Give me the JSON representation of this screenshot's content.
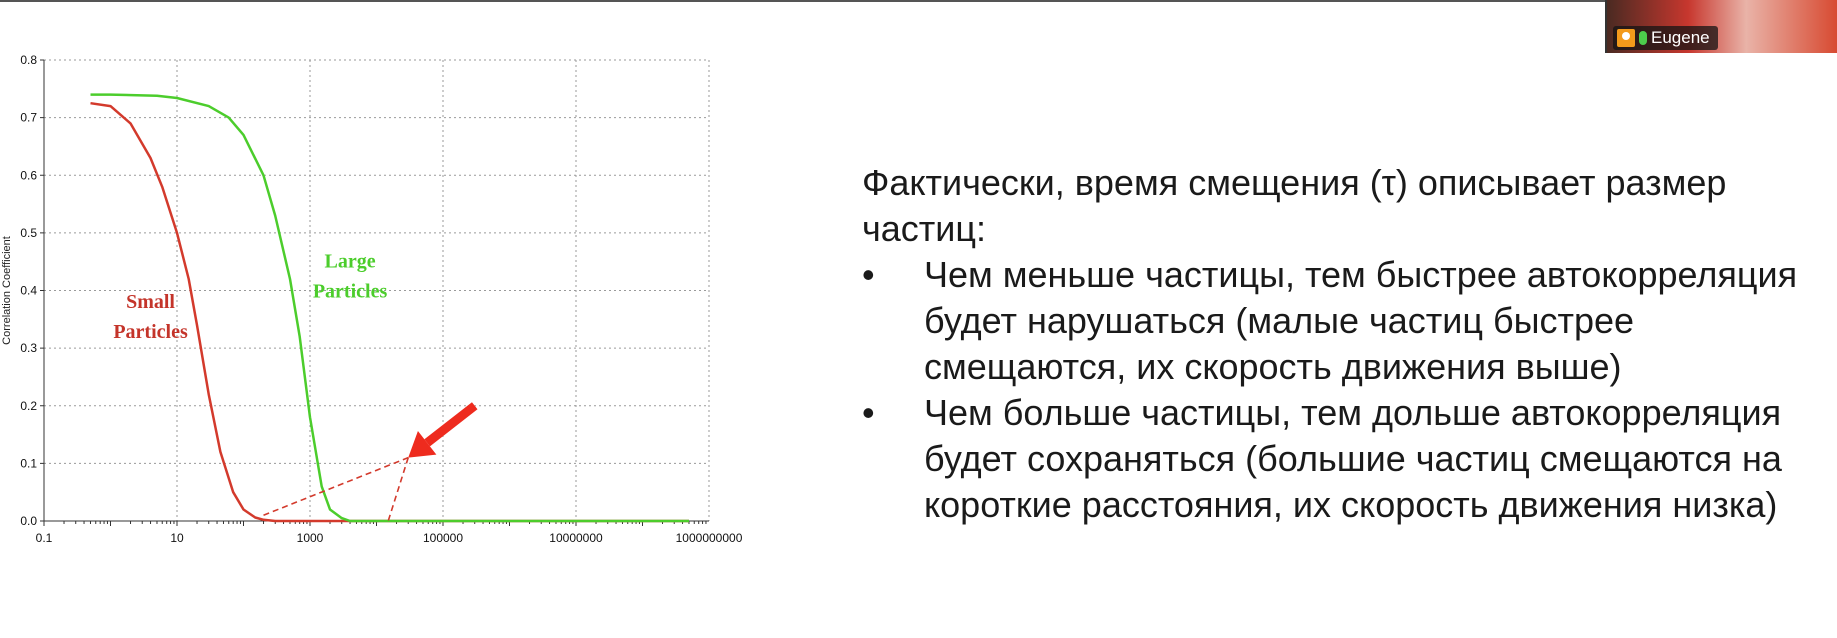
{
  "chart_data": {
    "type": "line",
    "title": "",
    "xlabel": "",
    "ylabel": "Correlation Coefficient",
    "x_scale": "log",
    "xlim": [
      0.1,
      1000000000
    ],
    "ylim": [
      0,
      0.8
    ],
    "grid": true,
    "x_ticks": [
      0.1,
      10,
      1000,
      100000,
      10000000,
      1000000000
    ],
    "x_tick_labels": [
      "0.1",
      "10",
      "1000",
      "100000",
      "10000000",
      "1000000000"
    ],
    "y_ticks": [
      0,
      0.1,
      0.2,
      0.3,
      0.4,
      0.5,
      0.6,
      0.7,
      0.8
    ],
    "y_tick_labels": [
      "0.0",
      "0.1",
      "0.2",
      "0.3",
      "0.4",
      "0.5",
      "0.6",
      "0.7",
      "0.8"
    ],
    "series": [
      {
        "name": "Small Particles",
        "color": "#d33a2c",
        "x": [
          0.5,
          1,
          2,
          4,
          6,
          10,
          15,
          20,
          30,
          45,
          70,
          100,
          150,
          200,
          300,
          1000,
          10000,
          1000000,
          500000000
        ],
        "y": [
          0.725,
          0.72,
          0.69,
          0.63,
          0.58,
          0.5,
          0.42,
          0.34,
          0.22,
          0.12,
          0.05,
          0.02,
          0.006,
          0.002,
          0.0,
          0.0,
          0.0,
          0.0,
          0.0
        ]
      },
      {
        "name": "Large Particles",
        "color": "#4ccd2c",
        "x": [
          0.5,
          1,
          5,
          10,
          30,
          60,
          100,
          200,
          300,
          500,
          700,
          1000,
          1500,
          2000,
          3000,
          4000,
          10000,
          1000000,
          500000000
        ],
        "y": [
          0.74,
          0.74,
          0.738,
          0.734,
          0.72,
          0.7,
          0.67,
          0.6,
          0.53,
          0.42,
          0.32,
          0.18,
          0.06,
          0.02,
          0.005,
          0.0,
          0.0,
          0.0,
          0.0
        ]
      }
    ],
    "annotations": [
      {
        "text_lines": [
          "Large",
          "Particles"
        ],
        "color": "#4ccd2c",
        "x": 4000,
        "y": 0.44
      },
      {
        "text_lines": [
          "Small",
          "Particles"
        ],
        "color": "#c4342a",
        "x": 4,
        "y": 0.37
      }
    ],
    "arrow": {
      "color": "#ee2b1e",
      "from": [
        300000,
        0.2
      ],
      "to": [
        30000,
        0.11
      ]
    },
    "tangent_lines": [
      {
        "color": "#d33a2c",
        "from": [
          200,
          0.01
        ],
        "to": [
          30000,
          0.11
        ]
      },
      {
        "color": "#d33a2c",
        "from": [
          30000,
          0.11
        ],
        "to": [
          15000,
          0.0
        ]
      }
    ]
  },
  "slide": {
    "intro": "Фактически, время смещения (τ) описывает размер частиц:",
    "bullets": [
      "Чем меньше частицы, тем быстрее автокорреляция будет нарушаться (малые частиц быстрее смещаются, их скорость движения выше)",
      "Чем больше частицы, тем дольше автокорреляция будет сохраняться (большие частиц смещаются на короткие расстояния, их скорость движения низка)"
    ]
  },
  "participant": {
    "name": "Eugene",
    "avatar_icon": "user-avatar-icon",
    "mic_icon": "microphone-icon"
  }
}
